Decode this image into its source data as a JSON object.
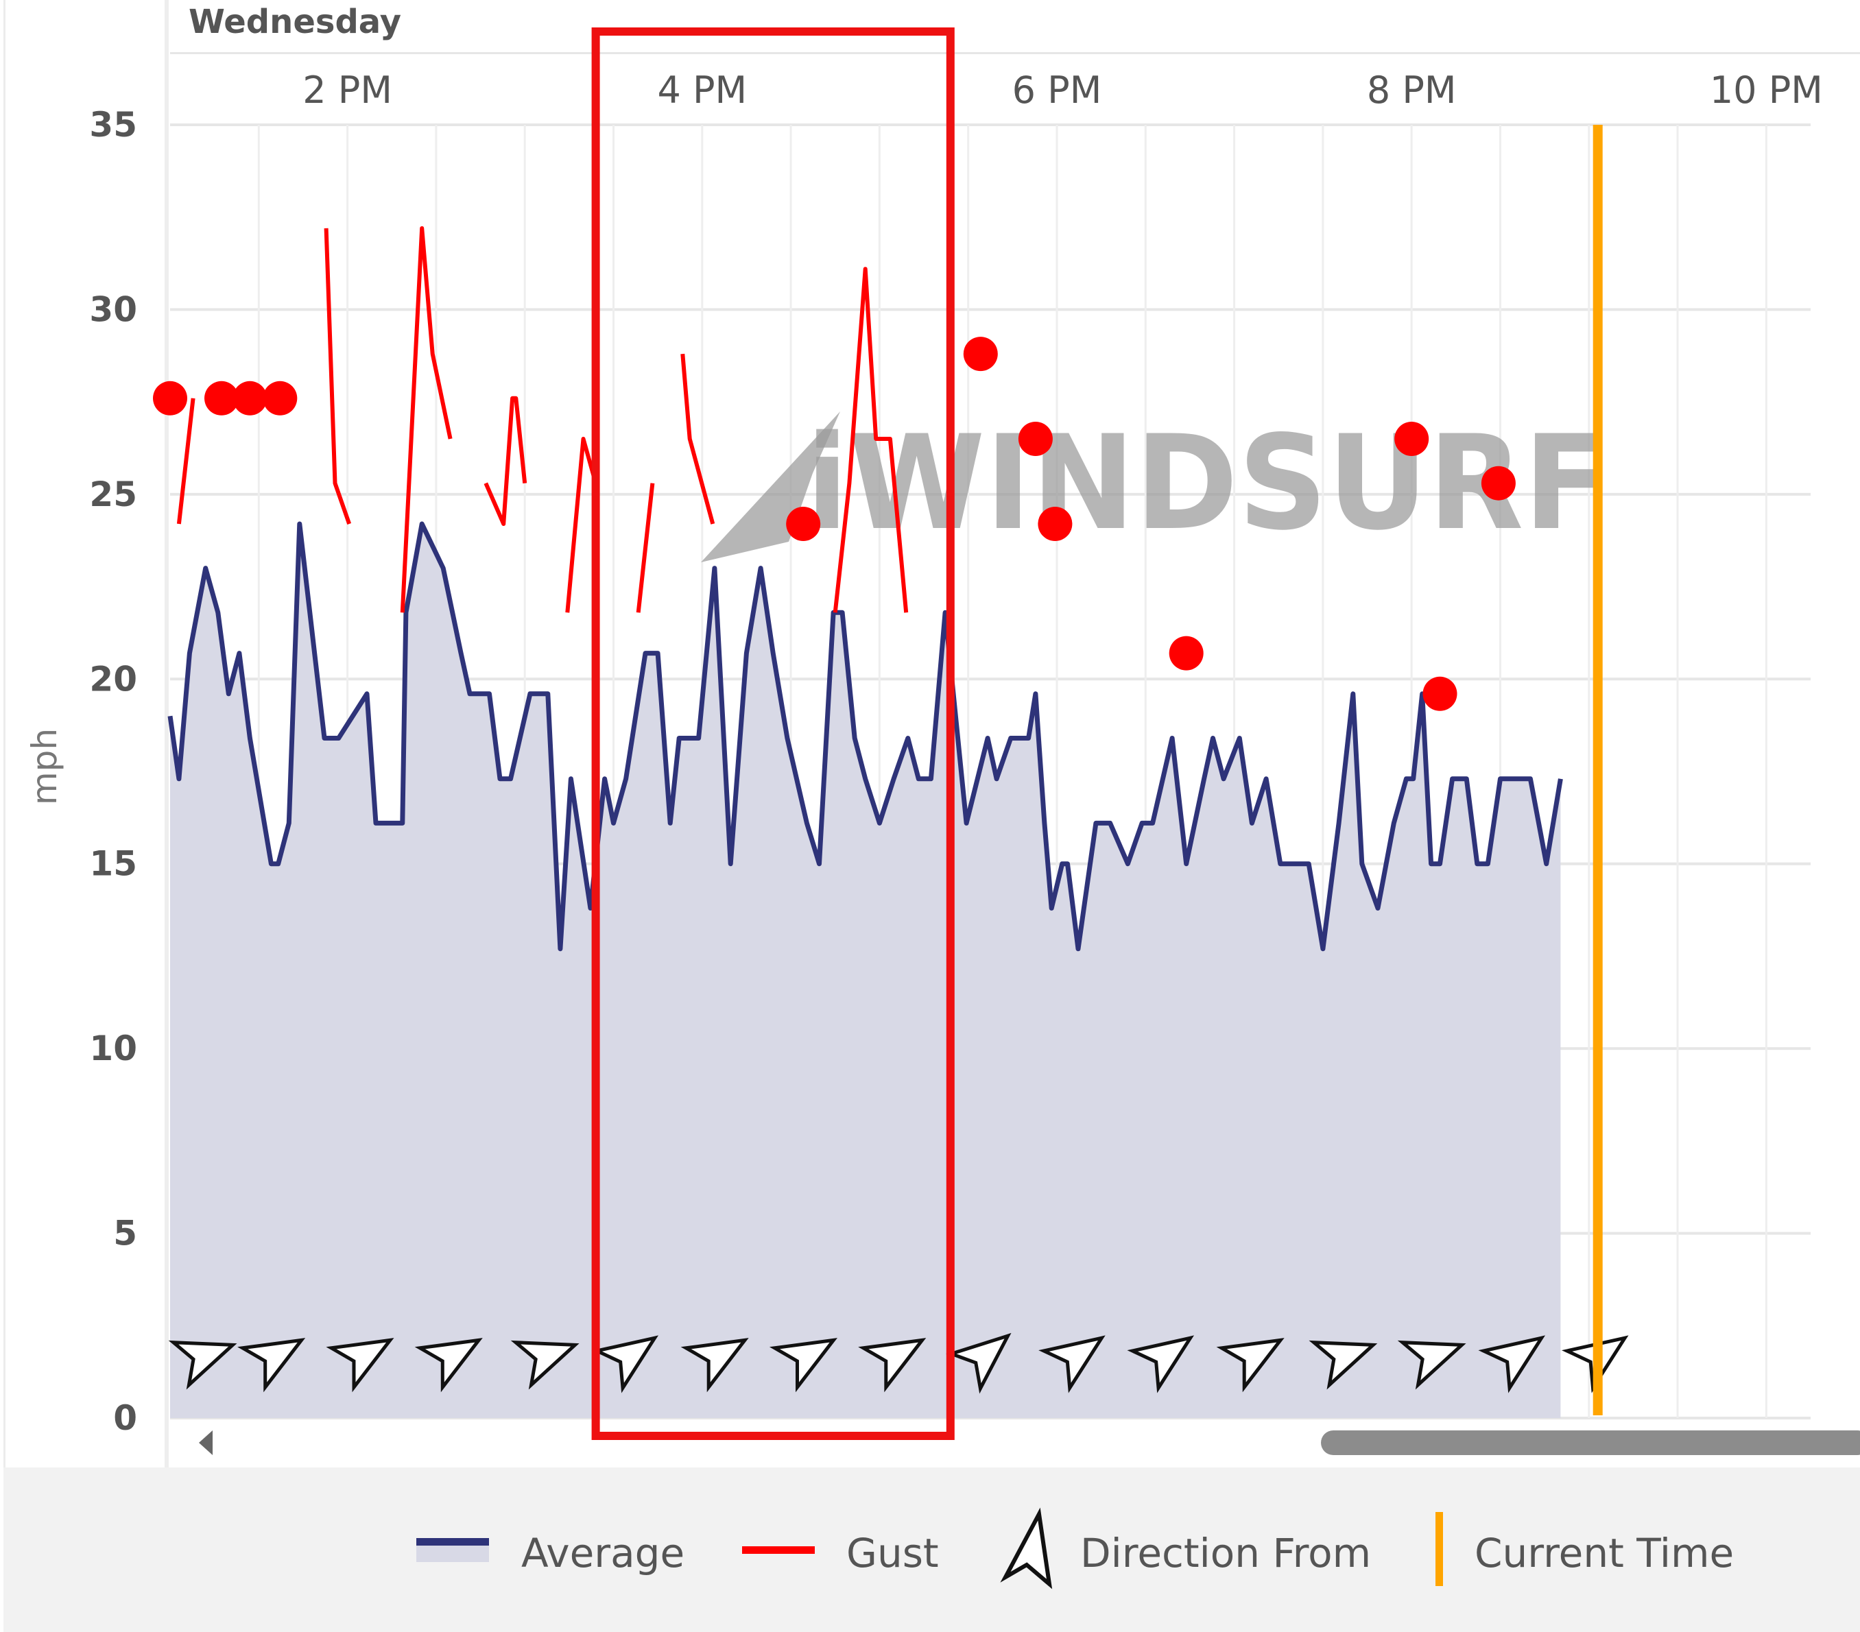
{
  "chart_data": {
    "type": "line",
    "day_label": "Wednesday",
    "ylabel": "mph",
    "ylim": [
      0,
      35
    ],
    "y_ticks": [
      0,
      5,
      10,
      15,
      20,
      25,
      30,
      35
    ],
    "xlim_hours": [
      13.0,
      22.25
    ],
    "x_ticks": [
      {
        "hour": 14,
        "label": "2 PM"
      },
      {
        "hour": 16,
        "label": "4 PM"
      },
      {
        "hour": 18,
        "label": "6 PM"
      },
      {
        "hour": 20,
        "label": "8 PM"
      },
      {
        "hour": 22,
        "label": "10 PM"
      }
    ],
    "watermark": "iWINDSURF",
    "current_time_hour": 21.05,
    "highlight_hours": [
      15.4,
      17.4
    ],
    "series": [
      {
        "name": "Average",
        "color": "#2e3379",
        "fill": "#d8d9e6",
        "hours": [
          13.0,
          13.05,
          13.11,
          13.2,
          13.27,
          13.33,
          13.39,
          13.45,
          13.57,
          13.61,
          13.67,
          13.73,
          13.87,
          13.95,
          14.11,
          14.16,
          14.25,
          14.31,
          14.33,
          14.42,
          14.54,
          14.64,
          14.69,
          14.8,
          14.86,
          14.92,
          15.03,
          15.13,
          15.2,
          15.26,
          15.37,
          15.45,
          15.5,
          15.57,
          15.68,
          15.75,
          15.82,
          15.87,
          15.9,
          15.98,
          16.07,
          16.16,
          16.25,
          16.33,
          16.4,
          16.48,
          16.59,
          16.66,
          16.74,
          16.79,
          16.86,
          16.92,
          17.0,
          17.08,
          17.16,
          17.22,
          17.29,
          17.37,
          17.49,
          17.61,
          17.66,
          17.74,
          17.84,
          17.88,
          17.93,
          17.97,
          18.03,
          18.06,
          18.12,
          18.22,
          18.3,
          18.4,
          18.48,
          18.54,
          18.65,
          18.73,
          18.83,
          18.88,
          18.94,
          19.03,
          19.1,
          19.18,
          19.26,
          19.32,
          19.36,
          19.42,
          19.5,
          19.59,
          19.67,
          19.72,
          19.81,
          19.9,
          19.97,
          20.01,
          20.06,
          20.11,
          20.16,
          20.23,
          20.31,
          20.37,
          20.43,
          20.5,
          20.61,
          20.67,
          20.76,
          20.84
        ],
        "values": [
          19.0,
          17.3,
          20.7,
          23.0,
          21.8,
          19.6,
          20.7,
          18.4,
          15.0,
          15.0,
          16.1,
          24.2,
          18.4,
          18.4,
          19.6,
          16.1,
          16.1,
          16.1,
          21.8,
          24.2,
          23.0,
          20.7,
          19.6,
          19.6,
          17.3,
          17.3,
          19.6,
          19.6,
          12.7,
          17.3,
          13.8,
          17.3,
          16.1,
          17.3,
          20.7,
          20.7,
          16.1,
          18.4,
          18.4,
          18.4,
          23.0,
          15.0,
          20.7,
          23.0,
          20.7,
          18.4,
          16.1,
          15.0,
          21.8,
          21.8,
          18.4,
          17.3,
          16.1,
          17.3,
          18.4,
          17.3,
          17.3,
          21.8,
          16.1,
          18.4,
          17.3,
          18.4,
          18.4,
          19.6,
          16.1,
          13.8,
          15.0,
          15.0,
          12.7,
          16.1,
          16.1,
          15.0,
          16.1,
          16.1,
          18.4,
          15.0,
          17.3,
          18.4,
          17.3,
          18.4,
          16.1,
          17.3,
          15.0,
          15.0,
          15.0,
          15.0,
          12.7,
          16.1,
          19.6,
          15.0,
          13.8,
          16.1,
          17.3,
          17.3,
          19.6,
          15.0,
          15.0,
          17.3,
          17.3,
          15.0,
          15.0,
          17.3,
          17.3,
          17.3,
          15.0,
          17.3
        ]
      },
      {
        "name": "Gust",
        "color": "#ff0000",
        "segments": [
          {
            "hours": [
              13.0,
              13.05
            ],
            "values": [
              27.6,
              27.6
            ]
          },
          {
            "hours": [
              13.05,
              13.13
            ],
            "values": [
              24.2,
              27.6
            ]
          },
          {
            "hours": [
              13.88,
              13.93,
              14.01
            ],
            "values": [
              32.2,
              25.3,
              24.2
            ]
          },
          {
            "hours": [
              14.31,
              14.42,
              14.48,
              14.58
            ],
            "values": [
              21.8,
              32.2,
              28.8,
              26.5
            ]
          },
          {
            "hours": [
              14.78,
              14.88,
              14.93,
              14.95,
              15.0
            ],
            "values": [
              25.3,
              24.2,
              27.6,
              27.6,
              25.3
            ]
          },
          {
            "hours": [
              15.24,
              15.33,
              15.4
            ],
            "values": [
              21.8,
              26.5,
              25.3
            ]
          },
          {
            "hours": [
              15.64,
              15.72
            ],
            "values": [
              21.8,
              25.3
            ]
          },
          {
            "hours": [
              15.89,
              15.93,
              16.06
            ],
            "values": [
              28.8,
              26.5,
              24.2
            ]
          },
          {
            "hours": [
              16.75,
              16.83,
              16.92,
              16.98,
              17.06,
              17.15
            ],
            "values": [
              21.8,
              25.3,
              31.1,
              26.5,
              26.5,
              21.8
            ]
          }
        ],
        "dots": [
          {
            "hour": 13.0,
            "value": 27.6
          },
          {
            "hour": 13.29,
            "value": 27.6
          },
          {
            "hour": 13.45,
            "value": 27.6
          },
          {
            "hour": 13.62,
            "value": 27.6
          },
          {
            "hour": 16.57,
            "value": 24.2
          },
          {
            "hour": 17.57,
            "value": 28.8
          },
          {
            "hour": 17.88,
            "value": 26.5
          },
          {
            "hour": 17.99,
            "value": 24.2
          },
          {
            "hour": 18.73,
            "value": 20.7
          },
          {
            "hour": 20.0,
            "value": 26.5
          },
          {
            "hour": 20.16,
            "value": 19.6
          },
          {
            "hour": 20.49,
            "value": 25.3
          }
        ]
      },
      {
        "name": "Direction From",
        "color": "#000000",
        "arrows": [
          {
            "hour": 13.0,
            "bearing_deg": 250
          },
          {
            "hour": 13.4,
            "bearing_deg": 240
          },
          {
            "hour": 13.9,
            "bearing_deg": 240
          },
          {
            "hour": 14.4,
            "bearing_deg": 240
          },
          {
            "hour": 14.93,
            "bearing_deg": 250
          },
          {
            "hour": 15.4,
            "bearing_deg": 235
          },
          {
            "hour": 15.9,
            "bearing_deg": 240
          },
          {
            "hour": 16.4,
            "bearing_deg": 240
          },
          {
            "hour": 16.9,
            "bearing_deg": 240
          },
          {
            "hour": 17.4,
            "bearing_deg": 230
          },
          {
            "hour": 17.92,
            "bearing_deg": 235
          },
          {
            "hour": 18.42,
            "bearing_deg": 235
          },
          {
            "hour": 18.92,
            "bearing_deg": 240
          },
          {
            "hour": 19.43,
            "bearing_deg": 250
          },
          {
            "hour": 19.93,
            "bearing_deg": 250
          },
          {
            "hour": 20.4,
            "bearing_deg": 235
          },
          {
            "hour": 20.87,
            "bearing_deg": 235
          }
        ]
      }
    ],
    "legend": [
      {
        "label": "Average",
        "kind": "line-fill",
        "color": "#2e3379"
      },
      {
        "label": "Gust",
        "kind": "line",
        "color": "#ff0000"
      },
      {
        "label": "Direction From",
        "kind": "arrow",
        "color": "#000000"
      },
      {
        "label": "Current Time",
        "kind": "vbar",
        "color": "#ffa500"
      }
    ],
    "colors": {
      "grid": "#e6e6e6",
      "current_time": "#ffa500",
      "highlight_box": "#ee1111",
      "legend_bg": "#f2f2f2",
      "scrollbar": "#8c8c8c"
    }
  }
}
